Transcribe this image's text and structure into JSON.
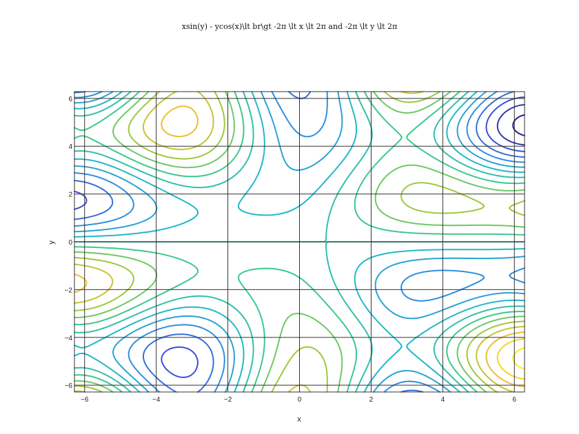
{
  "chart_data": {
    "type": "contour",
    "title": "xsin(y) - ycos(x)\\lt br\\gt -2π \\lt  x \\lt  2π and -2π \\lt  y \\lt  2π",
    "xlabel": "x",
    "ylabel": "y",
    "function": "x*sin(y) - y*cos(x)",
    "xlim": [
      -6.283,
      6.283
    ],
    "ylim": [
      -6.283,
      6.283
    ],
    "x_ticks": [
      -6,
      -4,
      -2,
      0,
      2,
      4,
      6
    ],
    "y_ticks": [
      -6,
      -4,
      -2,
      0,
      2,
      4,
      6
    ],
    "x_tick_labels": [
      "−6",
      "−4",
      "−2",
      "0",
      "2",
      "4",
      "6"
    ],
    "y_tick_labels": [
      "−6",
      "−4",
      "−2",
      "0",
      "2",
      "4",
      "6"
    ],
    "levels": [
      -10.5,
      -9,
      -7.5,
      -6,
      -4.5,
      -3,
      -1.5,
      0,
      1.5,
      3,
      4.5,
      6,
      7.5,
      9,
      10.5
    ],
    "colormap": [
      "#2a1e8c",
      "#3b4fd8",
      "#2f8ee0",
      "#21b8c8",
      "#3cc88c",
      "#9ec83c",
      "#f0bc30",
      "#f8f014"
    ],
    "grid": true,
    "grid_color": "#333333"
  }
}
